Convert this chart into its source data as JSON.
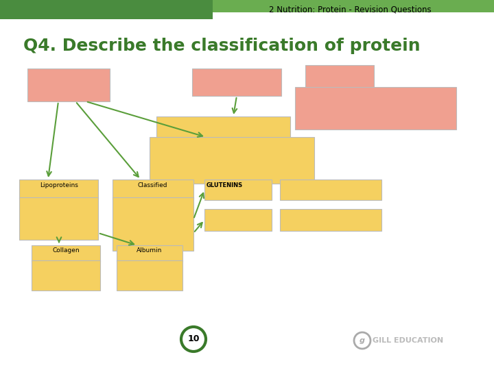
{
  "title": "Q4. Describe the classification of protein",
  "header_text": "2 Nutrition: Protein - Revision Questions",
  "header_bg": "#4a8c3f",
  "bg_color": "#ffffff",
  "title_color": "#3a7a2a",
  "title_fontsize": 18,
  "header_fontsize": 8.5,
  "salmon": "#f0a090",
  "yellow": "#f5d060",
  "yellow_light": "#f5d878",
  "arrow_color": "#5a9e3a",
  "page_number": "10",
  "gill_text": "GILL EDUCATION"
}
